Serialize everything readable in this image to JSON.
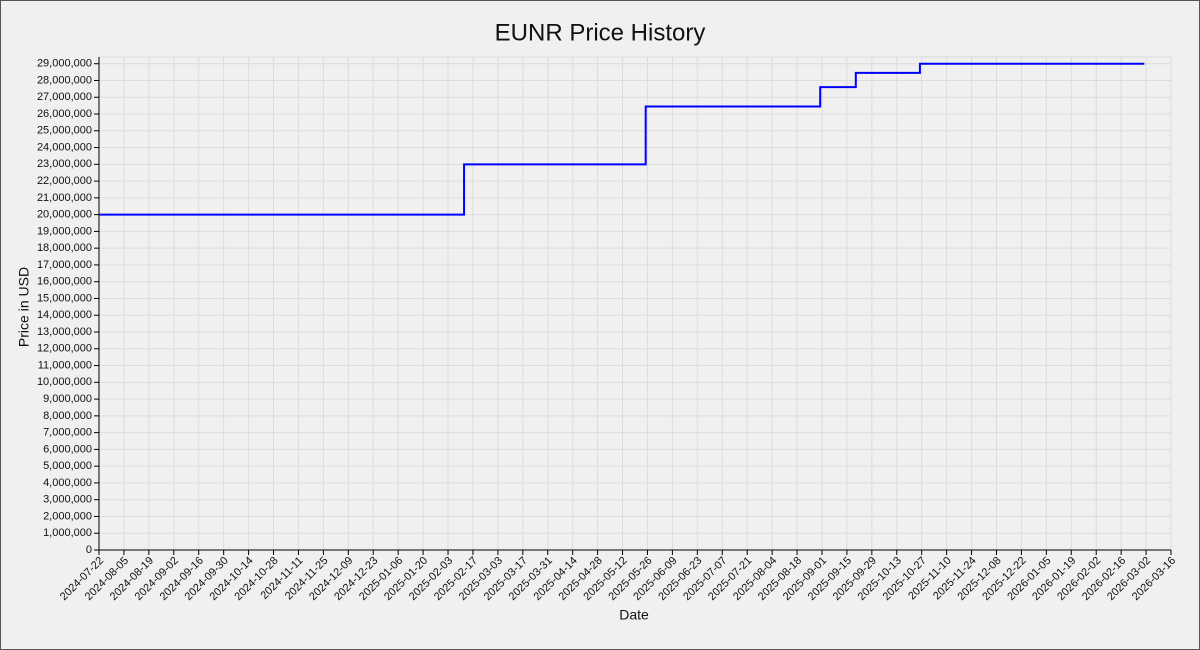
{
  "chart_data": {
    "type": "line",
    "step": "post",
    "title": "EUNR Price History",
    "x_label": "Date",
    "y_label": "Price in USD",
    "color": "#0000ff",
    "grid": true,
    "x": [
      "2024-07-22",
      "2025-02-12",
      "2025-05-25",
      "2025-08-31",
      "2025-09-20",
      "2025-10-26",
      "2026-03-01"
    ],
    "values": [
      20000000,
      23000000,
      26450000,
      27600000,
      28450000,
      29000000,
      29000000
    ],
    "xlim": [
      "2024-07-22",
      "2026-03-16"
    ],
    "xticks": [
      "2024-07-22",
      "2024-08-05",
      "2024-08-19",
      "2024-09-02",
      "2024-09-16",
      "2024-09-30",
      "2024-10-14",
      "2024-10-28",
      "2024-11-11",
      "2024-11-25",
      "2024-12-09",
      "2024-12-23",
      "2025-01-06",
      "2025-01-20",
      "2025-02-03",
      "2025-02-17",
      "2025-03-03",
      "2025-03-17",
      "2025-03-31",
      "2025-04-14",
      "2025-04-28",
      "2025-05-12",
      "2025-05-26",
      "2025-06-09",
      "2025-06-23",
      "2025-07-07",
      "2025-07-21",
      "2025-08-04",
      "2025-08-18",
      "2025-09-01",
      "2025-09-15",
      "2025-09-29",
      "2025-10-13",
      "2025-10-27",
      "2025-11-10",
      "2025-11-24",
      "2025-12-08",
      "2025-12-22",
      "2026-01-05",
      "2026-01-19",
      "2026-02-02",
      "2026-02-16",
      "2026-03-02",
      "2026-03-16"
    ],
    "ylim": [
      0,
      29400000
    ],
    "yticks": [
      0,
      {
        "value": 1000000,
        "label": "1,000,000"
      },
      {
        "value": 2000000,
        "label": "2,000,000"
      },
      {
        "value": 3000000,
        "label": "3,000,000"
      },
      {
        "value": 4000000,
        "label": "4,000,000"
      },
      {
        "value": 5000000,
        "label": "5,000,000"
      },
      {
        "value": 6000000,
        "label": "6,000,000"
      },
      {
        "value": 7000000,
        "label": "7,000,000"
      },
      {
        "value": 8000000,
        "label": "8,000,000"
      },
      {
        "value": 9000000,
        "label": "9,000,000"
      },
      {
        "value": 10000000,
        "label": "10,000,000"
      },
      {
        "value": 11000000,
        "label": "11,000,000"
      },
      {
        "value": 12000000,
        "label": "12,000,000"
      },
      {
        "value": 13000000,
        "label": "13,000,000"
      },
      {
        "value": 14000000,
        "label": "14,000,000"
      },
      {
        "value": 15000000,
        "label": "15,000,000"
      },
      {
        "value": 16000000,
        "label": "16,000,000"
      },
      {
        "value": 17000000,
        "label": "17,000,000"
      },
      {
        "value": 18000000,
        "label": "18,000,000"
      },
      {
        "value": 19000000,
        "label": "19,000,000"
      },
      {
        "value": 20000000,
        "label": "20,000,000"
      },
      {
        "value": 21000000,
        "label": "21,000,000"
      },
      {
        "value": 22000000,
        "label": "22,000,000"
      },
      {
        "value": 23000000,
        "label": "23,000,000"
      },
      {
        "value": 24000000,
        "label": "24,000,000"
      },
      {
        "value": 25000000,
        "label": "25,000,000"
      },
      {
        "value": 26000000,
        "label": "26,000,000"
      },
      {
        "value": 27000000,
        "label": "27,000,000"
      },
      {
        "value": 28000000,
        "label": "28,000,000"
      },
      {
        "value": 29000000,
        "label": "29,000,000"
      }
    ]
  }
}
